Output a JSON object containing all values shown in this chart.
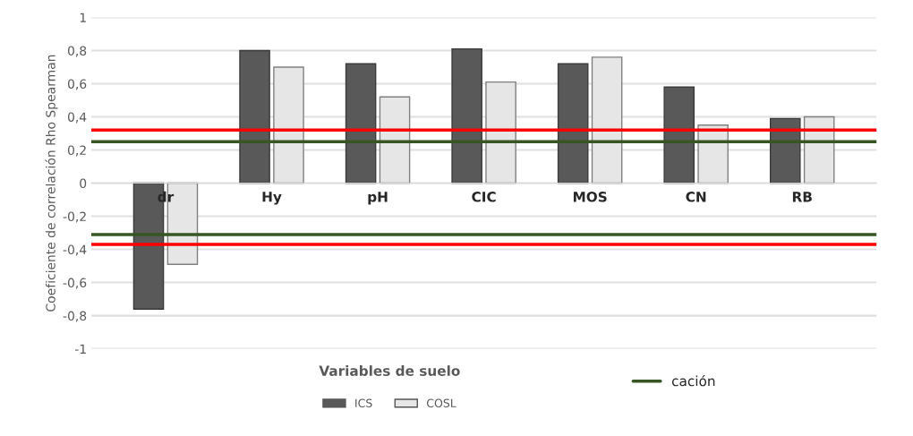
{
  "chart_data": {
    "type": "bar",
    "ylabel": "Coeficiente de correlación Rho Spearman",
    "xlabel": "Variables de suelo",
    "categories": [
      "dr",
      "Hy",
      "pH",
      "CIC",
      "MOS",
      "CN",
      "RB"
    ],
    "series": [
      {
        "name": "ICS",
        "color": "#595959",
        "values": [
          -0.76,
          0.8,
          0.72,
          0.81,
          0.72,
          0.58,
          0.39
        ]
      },
      {
        "name": "COSL",
        "color": "#e6e6e6",
        "values": [
          -0.49,
          0.7,
          0.52,
          0.61,
          0.76,
          0.35,
          0.4
        ]
      }
    ],
    "ylim": [
      -1,
      1
    ],
    "yticks": [
      {
        "value": -1,
        "label": "-1"
      },
      {
        "value": -0.8,
        "label": "-0,8"
      },
      {
        "value": -0.6,
        "label": "-0,6"
      },
      {
        "value": -0.4,
        "label": "-0,4"
      },
      {
        "value": -0.2,
        "label": "-0,2"
      },
      0,
      {
        "value": 0.2,
        "label": "0,2"
      },
      {
        "value": 0.4,
        "label": "0,4"
      },
      {
        "value": 0.6,
        "label": "0,6"
      },
      {
        "value": 0.8,
        "label": "0,8"
      },
      1
    ],
    "ref_lines": [
      {
        "axis": "y",
        "value": 0.32,
        "color": "#ff0000"
      },
      {
        "axis": "y",
        "value": 0.25,
        "color": "#375623",
        "label": "cación"
      },
      {
        "axis": "y",
        "value": -0.31,
        "color": "#375623"
      },
      {
        "axis": "y",
        "value": -0.37,
        "color": "#ff0000"
      }
    ],
    "grid": "y",
    "legend": "bottom"
  }
}
